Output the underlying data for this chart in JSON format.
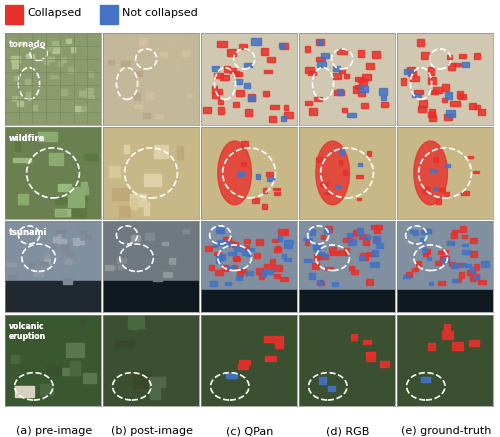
{
  "title": "",
  "legend_items": [
    {
      "label": "Collapsed",
      "color": "#e8302a"
    },
    {
      "label": "Not collapsed",
      "color": "#4472c4"
    }
  ],
  "row_labels": [
    "tornado",
    "wildfire",
    "tsunami",
    "volcanic\neruption"
  ],
  "col_labels": [
    "(a) pre-image",
    "(b) post-image",
    "(c) QPan",
    "(d) RGB",
    "(e) ground-truth"
  ],
  "n_rows": 4,
  "n_cols": 5,
  "background_color": "#ffffff",
  "label_color": "#ffffff",
  "label_bg_color": "#000000",
  "col_label_color": "#000000",
  "legend_fontsize": 9,
  "row_label_fontsize": 8,
  "col_label_fontsize": 8
}
